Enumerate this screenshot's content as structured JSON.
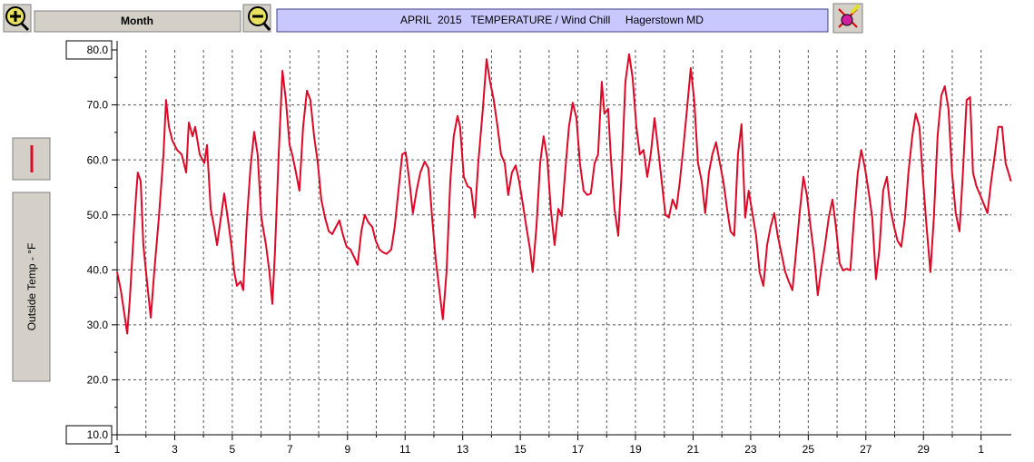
{
  "toolbar": {
    "period": "Month"
  },
  "chart_data": {
    "type": "line",
    "title": "APRIL  2015   TEMPERATURE / Wind Chill     Hagerstown MD",
    "y_label": "Outside Temp - °F",
    "xlim": [
      1,
      32.05
    ],
    "xticks": [
      1,
      3,
      5,
      7,
      9,
      11,
      13,
      15,
      17,
      19,
      21,
      23,
      25,
      27,
      29,
      {
        "value": 31,
        "label": "1"
      }
    ],
    "x_minor_ticks": [
      2,
      4,
      6,
      8,
      10,
      12,
      14,
      16,
      18,
      20,
      22,
      24,
      26,
      28,
      30
    ],
    "ylim": [
      10,
      80
    ],
    "yticks": [
      {
        "value": 10,
        "label": "10.0"
      },
      {
        "value": 20,
        "label": "20.0"
      },
      {
        "value": 30,
        "label": "30.0"
      },
      {
        "value": 40,
        "label": "40.0"
      },
      {
        "value": 50,
        "label": "50.0"
      },
      {
        "value": 60,
        "label": "60.0"
      },
      {
        "value": 70,
        "label": "70.0"
      },
      {
        "value": 80,
        "label": "80.0"
      }
    ],
    "y_minor_ticks": [
      15,
      25,
      35,
      45,
      55,
      65,
      75
    ],
    "grid": true,
    "series": [
      {
        "color": "#dc0a28",
        "x": [
          1.0,
          1.13,
          1.25,
          1.35,
          1.44,
          1.57,
          1.66,
          1.72,
          1.82,
          1.91,
          2.07,
          2.17,
          2.29,
          2.45,
          2.61,
          2.7,
          2.8,
          2.92,
          3.08,
          3.24,
          3.4,
          3.49,
          3.62,
          3.71,
          3.87,
          4.03,
          4.12,
          4.25,
          4.37,
          4.47,
          4.59,
          4.72,
          4.84,
          4.97,
          5.07,
          5.16,
          5.29,
          5.38,
          5.51,
          5.63,
          5.76,
          5.88,
          6.01,
          6.17,
          6.29,
          6.39,
          6.48,
          6.61,
          6.74,
          6.86,
          6.99,
          7.08,
          7.21,
          7.33,
          7.46,
          7.59,
          7.71,
          7.84,
          7.97,
          8.09,
          8.22,
          8.35,
          8.47,
          8.6,
          8.72,
          8.85,
          8.97,
          9.1,
          9.26,
          9.35,
          9.48,
          9.6,
          9.73,
          9.86,
          9.98,
          10.11,
          10.23,
          10.36,
          10.52,
          10.64,
          10.77,
          10.9,
          11.02,
          11.15,
          11.27,
          11.4,
          11.53,
          11.68,
          11.81,
          11.94,
          12.06,
          12.19,
          12.31,
          12.44,
          12.57,
          12.69,
          12.82,
          12.91,
          13.04,
          13.17,
          13.29,
          13.42,
          13.54,
          13.7,
          13.83,
          13.95,
          14.08,
          14.21,
          14.33,
          14.46,
          14.58,
          14.71,
          14.84,
          14.96,
          15.09,
          15.21,
          15.34,
          15.43,
          15.56,
          15.69,
          15.81,
          15.94,
          16.06,
          16.19,
          16.32,
          16.44,
          16.57,
          16.69,
          16.82,
          16.95,
          17.07,
          17.2,
          17.33,
          17.45,
          17.58,
          17.7,
          17.83,
          17.92,
          18.05,
          18.14,
          18.27,
          18.4,
          18.52,
          18.65,
          18.78,
          18.9,
          19.03,
          19.15,
          19.28,
          19.41,
          19.53,
          19.66,
          19.79,
          19.91,
          20.04,
          20.16,
          20.29,
          20.42,
          20.54,
          20.67,
          20.79,
          20.92,
          21.04,
          21.17,
          21.3,
          21.42,
          21.55,
          21.67,
          21.8,
          21.93,
          22.05,
          22.18,
          22.3,
          22.43,
          22.56,
          22.68,
          22.81,
          22.93,
          23.06,
          23.19,
          23.31,
          23.44,
          23.57,
          23.69,
          23.82,
          23.94,
          24.07,
          24.2,
          24.32,
          24.45,
          24.57,
          24.7,
          24.83,
          24.95,
          25.08,
          25.2,
          25.33,
          25.46,
          25.58,
          25.71,
          25.84,
          25.96,
          26.09,
          26.21,
          26.34,
          26.46,
          26.59,
          26.72,
          26.84,
          26.97,
          27.09,
          27.22,
          27.35,
          27.47,
          27.6,
          27.73,
          27.85,
          27.98,
          28.1,
          28.23,
          28.36,
          28.48,
          28.61,
          28.73,
          28.86,
          28.99,
          29.11,
          29.24,
          29.36,
          29.49,
          29.62,
          29.74,
          29.87,
          29.99,
          30.12,
          30.25,
          30.37,
          30.5,
          30.62,
          30.72,
          30.84,
          30.97,
          31.1,
          31.22,
          31.35,
          31.48,
          31.6,
          31.73,
          31.85,
          31.95,
          32.04
        ],
        "y": [
          39.6,
          36.3,
          32.1,
          28.4,
          34.6,
          46.2,
          53.6,
          57.7,
          56.1,
          44.5,
          36.3,
          31.3,
          39.6,
          49.5,
          61.0,
          70.9,
          66.0,
          63.5,
          61.8,
          61.0,
          57.7,
          66.8,
          64.3,
          66.0,
          61.0,
          59.4,
          62.7,
          51.1,
          47.8,
          44.5,
          49.0,
          53.9,
          49.5,
          44.5,
          39.6,
          37.1,
          37.9,
          36.3,
          49.5,
          58.5,
          65.1,
          61.0,
          49.5,
          44.5,
          39.6,
          33.8,
          42.9,
          61.0,
          76.2,
          70.9,
          62.7,
          61.0,
          57.7,
          54.4,
          66.0,
          72.6,
          70.9,
          64.3,
          59.4,
          52.8,
          49.5,
          47.0,
          46.5,
          47.8,
          49.0,
          46.2,
          44.2,
          43.7,
          42.0,
          40.9,
          47.0,
          50.0,
          48.6,
          47.8,
          45.3,
          43.7,
          43.2,
          42.9,
          43.7,
          47.8,
          54.4,
          61.0,
          61.4,
          56.1,
          50.3,
          54.4,
          57.7,
          59.7,
          58.5,
          49.5,
          42.0,
          36.3,
          31.0,
          39.6,
          56.1,
          64.3,
          68.0,
          66.0,
          56.9,
          55.2,
          54.8,
          49.5,
          59.4,
          69.3,
          78.3,
          74.2,
          70.9,
          66.0,
          61.0,
          59.4,
          53.6,
          57.7,
          59.0,
          56.1,
          51.9,
          47.8,
          43.7,
          39.6,
          47.8,
          59.4,
          64.3,
          60.2,
          51.1,
          44.5,
          51.1,
          49.8,
          58.5,
          66.0,
          70.4,
          67.6,
          59.4,
          54.4,
          53.6,
          53.9,
          59.4,
          61.0,
          74.2,
          68.4,
          69.3,
          61.0,
          51.1,
          46.2,
          57.7,
          74.2,
          79.2,
          75.0,
          66.0,
          61.0,
          61.8,
          56.9,
          61.0,
          67.6,
          61.8,
          56.1,
          50.0,
          49.5,
          52.8,
          51.1,
          56.1,
          62.7,
          69.3,
          76.7,
          70.9,
          59.4,
          56.1,
          50.3,
          57.7,
          61.0,
          63.2,
          59.4,
          56.1,
          51.1,
          47.0,
          46.2,
          61.0,
          66.5,
          49.5,
          54.4,
          50.3,
          46.2,
          39.6,
          37.1,
          44.5,
          47.8,
          50.3,
          46.2,
          42.9,
          39.6,
          37.9,
          36.3,
          42.9,
          50.3,
          56.9,
          53.6,
          47.8,
          42.9,
          35.4,
          40.4,
          44.5,
          49.5,
          52.8,
          47.8,
          41.2,
          39.9,
          40.2,
          39.9,
          49.5,
          57.7,
          61.8,
          58.5,
          54.4,
          49.5,
          38.3,
          43.7,
          54.4,
          56.9,
          51.1,
          47.8,
          45.3,
          44.2,
          49.5,
          57.7,
          64.3,
          68.4,
          66.0,
          56.1,
          47.8,
          39.6,
          49.5,
          64.3,
          71.7,
          73.4,
          69.3,
          57.7,
          50.3,
          47.0,
          57.7,
          70.9,
          71.4,
          57.7,
          55.2,
          53.6,
          51.9,
          50.3,
          56.1,
          61.0,
          66.0,
          66.0,
          59.4,
          57.7,
          56.1
        ]
      }
    ]
  }
}
